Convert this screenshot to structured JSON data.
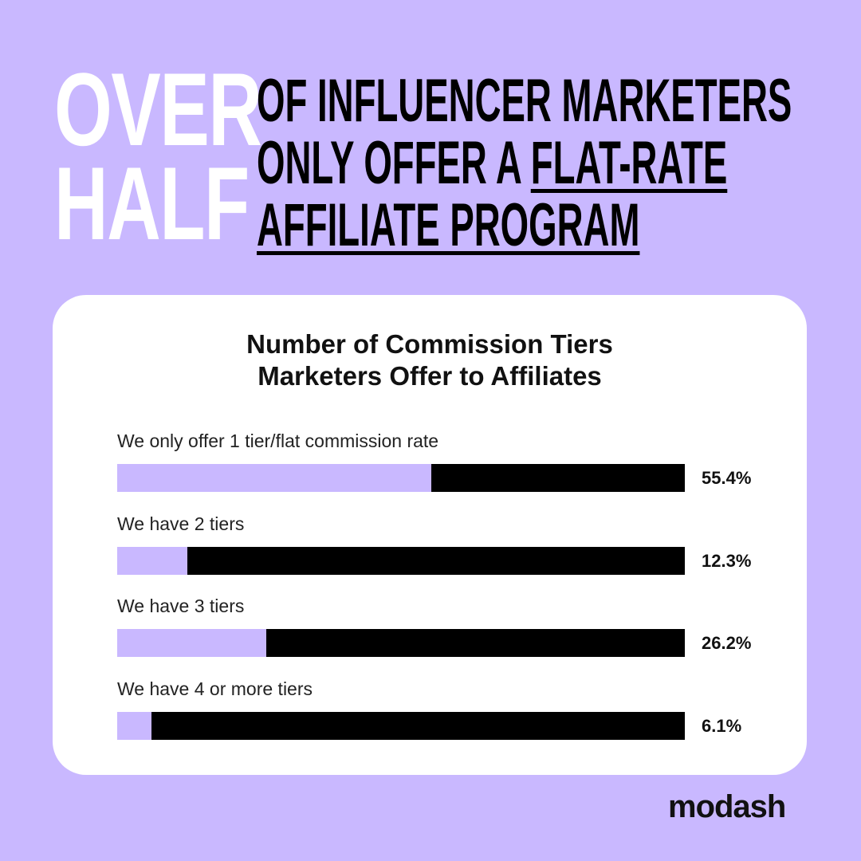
{
  "headline": {
    "big_line1": "OVER",
    "big_line2": "HALF",
    "sub_line1": "OF INFLUENCER MARKETERS",
    "sub_line2_plain": "ONLY OFFER A ",
    "sub_line2_underlined": "FLAT-RATE",
    "sub_line3_underlined": "AFFILIATE PROGRAM"
  },
  "chart_data": {
    "type": "bar",
    "orientation": "horizontal",
    "title_line1": "Number of Commission Tiers",
    "title_line2": "Marketers Offer to Affiliates",
    "categories": [
      "We only offer 1 tier/flat commission rate",
      "We have 2 tiers",
      "We have 3 tiers",
      "We have 4 or more tiers"
    ],
    "values": [
      55.4,
      12.3,
      26.2,
      6.1
    ],
    "value_labels": [
      "55.4%",
      "12.3%",
      "26.2%",
      "6.1%"
    ],
    "xlim": [
      0,
      100
    ],
    "unit": "%"
  },
  "colors": {
    "background": "#c9b8ff",
    "bar_fill": "#c9b8ff",
    "bar_track": "#000000",
    "card": "#ffffff"
  },
  "brand": {
    "logo_text": "modash"
  }
}
